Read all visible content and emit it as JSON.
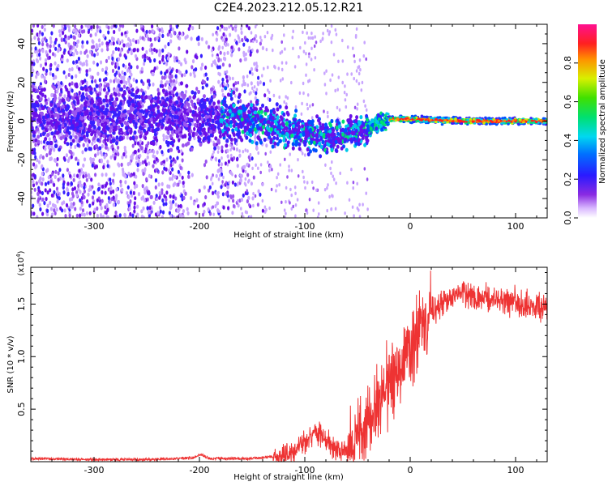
{
  "figure": {
    "title": "C2E4.2023.212.05.12.R21"
  },
  "chart_data": [
    {
      "type": "heatmap",
      "title": "C2E4.2023.212.05.12.R21",
      "xlabel": "Height of straight line (km)",
      "ylabel": "Frequency (Hz)",
      "xlim": [
        -360,
        130
      ],
      "ylim": [
        -50,
        50
      ],
      "x_ticks": [
        -300,
        -200,
        -100,
        0,
        100
      ],
      "y_ticks": [
        -40,
        -20,
        0,
        20,
        40
      ],
      "grid": false,
      "colorscale": "rainbow (purple → blue → cyan → green → yellow → red → magenta)",
      "colorbar": {
        "label": "Normalized spectral amplitude",
        "range": [
          0,
          1
        ],
        "ticks": [
          0.0,
          0.2,
          0.4,
          0.6,
          0.8
        ],
        "position": "right"
      },
      "signal_centerline": {
        "x": [
          -360,
          -300,
          -250,
          -200,
          -170,
          -150,
          -120,
          -100,
          -80,
          -60,
          -45,
          -35,
          -20,
          0,
          50,
          100,
          130
        ],
        "frequency_hz": [
          2,
          2,
          2,
          2,
          2,
          0,
          -3,
          -6,
          -8,
          -7,
          -5,
          -2,
          1,
          1,
          0,
          0,
          0
        ]
      }
    },
    {
      "type": "line",
      "xlabel": "Height of straight line (km)",
      "ylabel": "SNR (10 * v/v)",
      "y_scale_note": "(x10",
      "y_scale_exp": "4",
      "y_scale_note_close": ")",
      "xlim": [
        -360,
        130
      ],
      "ylim": [
        0,
        1.85
      ],
      "x_ticks": [
        -300,
        -200,
        -100,
        0,
        100
      ],
      "y_ticks": [
        0.5,
        1.0,
        1.5
      ],
      "y_tick_labels": [
        "0.5",
        "1.0",
        "1.5"
      ],
      "grid": false,
      "series": [
        {
          "color": "#ee3333",
          "x": [
            -360,
            -300,
            -250,
            -220,
            -205,
            -200,
            -190,
            -150,
            -120,
            -110,
            -100,
            -90,
            -80,
            -70,
            -60,
            -50,
            -40,
            -30,
            -20,
            -10,
            0,
            10,
            20,
            30,
            40,
            50,
            60,
            70,
            80,
            90,
            100,
            110,
            120,
            130
          ],
          "y": [
            0.03,
            0.02,
            0.02,
            0.03,
            0.04,
            0.07,
            0.03,
            0.03,
            0.06,
            0.1,
            0.2,
            0.28,
            0.22,
            0.1,
            0.08,
            0.18,
            0.35,
            0.55,
            0.75,
            0.95,
            1.1,
            1.28,
            1.42,
            1.5,
            1.55,
            1.6,
            1.58,
            1.56,
            1.55,
            1.53,
            1.52,
            1.5,
            1.48,
            1.45
          ]
        }
      ]
    }
  ]
}
